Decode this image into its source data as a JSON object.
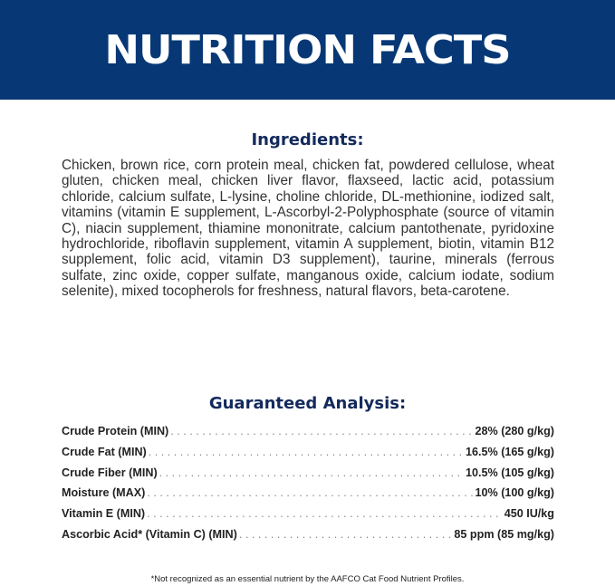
{
  "banner": {
    "title": "NUTRITION FACTS",
    "color": "#073875"
  },
  "ingredients": {
    "heading": "Ingredients:",
    "text": "Chicken, brown rice, corn protein meal, chicken fat, powdered cellulose, wheat gluten, chicken meal, chicken liver flavor, flaxseed, lactic acid, potassium chloride, calcium sulfate, L-lysine, choline chloride, DL-methionine, iodized salt, vitamins (vitamin E supplement, L-Ascorbyl-2-Polyphosphate (source of vitamin C), niacin supplement, thiamine mononitrate, calcium pantothenate, pyridoxine hydrochloride, riboflavin supplement, vitamin A supplement, biotin, vitamin B12 supplement, folic acid, vitamin D3 supplement), taurine, minerals (ferrous sulfate, zinc oxide, copper sulfate, manganous oxide, calcium iodate, sodium selenite), mixed tocopherols for freshness, natural flavors, beta-carotene."
  },
  "analysis": {
    "heading": "Guaranteed Analysis:",
    "rows": [
      {
        "label": "Crude Protein (MIN)",
        "value": "28% (280 g/kg)"
      },
      {
        "label": "Crude Fat (MIN)",
        "value": "16.5% (165 g/kg)"
      },
      {
        "label": "Crude Fiber (MIN)",
        "value": "10.5% (105 g/kg)"
      },
      {
        "label": "Moisture (MAX)",
        "value": "10% (100 g/kg)"
      },
      {
        "label": "Vitamin E (MIN)",
        "value": "450 IU/kg"
      },
      {
        "label": "Ascorbic Acid* (Vitamin C) (MIN)",
        "value": "85 ppm (85 mg/kg)"
      }
    ]
  },
  "footnote": "*Not recognized as an essential nutrient by the AAFCO Cat Food Nutrient Profiles."
}
